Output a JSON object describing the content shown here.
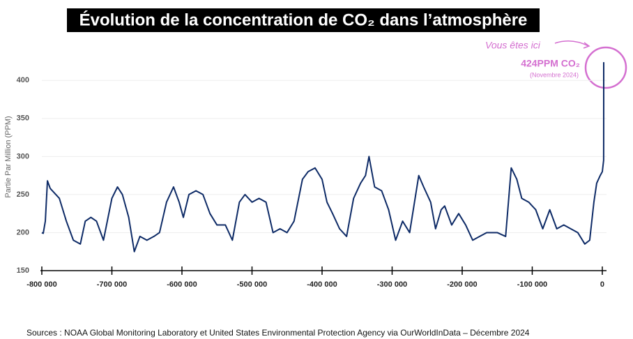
{
  "chart_data": {
    "type": "line",
    "title": "Évolution de la concentration de  CO₂ dans l’atmosphère",
    "y_label": "Partie Par Million (PPM)",
    "source": "Sources : NOAA Global Monitoring Laboratory et United States Environmental Protection Agency via OurWorldInData – Décembre 2024",
    "annotations": [
      "Vous êtes ici",
      "424PPM CO₂",
      "(Novembre 2024)"
    ],
    "color": "#0d2a66",
    "grid": true,
    "xlim": [
      -800000,
      6000
    ],
    "ylim": [
      150,
      425
    ],
    "xticks": [
      {
        "value": -800000,
        "label": "-800 000"
      },
      {
        "value": -700000,
        "label": "-700 000"
      },
      {
        "value": -600000,
        "label": "-600 000"
      },
      {
        "value": -500000,
        "label": "-500 000"
      },
      {
        "value": -400000,
        "label": "-400 000"
      },
      {
        "value": -300000,
        "label": "-300 000"
      },
      {
        "value": -200000,
        "label": "-200 000"
      },
      {
        "value": -100000,
        "label": "-100 000"
      },
      0
    ],
    "yticks": [
      150,
      200,
      250,
      300,
      350,
      400
    ],
    "x": [
      -800000,
      -798000,
      -795000,
      -792000,
      -788000,
      -785000,
      -775000,
      -765000,
      -755000,
      -745000,
      -738000,
      -730000,
      -722000,
      -712000,
      -700000,
      -692000,
      -685000,
      -676000,
      -668000,
      -660000,
      -650000,
      -640000,
      -632000,
      -622000,
      -612000,
      -604000,
      -598000,
      -590000,
      -580000,
      -570000,
      -560000,
      -550000,
      -538000,
      -528000,
      -518000,
      -510000,
      -500000,
      -490000,
      -480000,
      -470000,
      -460000,
      -450000,
      -440000,
      -428000,
      -420000,
      -410000,
      -400000,
      -393000,
      -385000,
      -375000,
      -365000,
      -355000,
      -345000,
      -338000,
      -333000,
      -325000,
      -315000,
      -305000,
      -295000,
      -285000,
      -275000,
      -262000,
      -255000,
      -245000,
      -238000,
      -230000,
      -225000,
      -215000,
      -205000,
      -195000,
      -185000,
      -175000,
      -165000,
      -150000,
      -138000,
      -130000,
      -122000,
      -115000,
      -105000,
      -95000,
      -85000,
      -75000,
      -65000,
      -55000,
      -45000,
      -35000,
      -25000,
      -18000,
      -12000,
      -8000,
      -3000,
      0,
      1900,
      1960,
      2000,
      2024
    ],
    "values": [
      200,
      199,
      215,
      268,
      258,
      255,
      245,
      215,
      190,
      185,
      215,
      220,
      215,
      190,
      245,
      260,
      250,
      220,
      175,
      195,
      190,
      195,
      200,
      240,
      260,
      240,
      220,
      250,
      255,
      250,
      225,
      210,
      210,
      190,
      240,
      250,
      240,
      245,
      240,
      200,
      205,
      200,
      215,
      270,
      280,
      285,
      270,
      240,
      225,
      205,
      195,
      245,
      265,
      275,
      300,
      260,
      255,
      230,
      190,
      215,
      200,
      275,
      260,
      240,
      205,
      230,
      235,
      210,
      225,
      210,
      190,
      195,
      200,
      200,
      195,
      285,
      270,
      245,
      240,
      230,
      205,
      230,
      205,
      210,
      205,
      200,
      185,
      190,
      240,
      265,
      275,
      280,
      295,
      317,
      370,
      424
    ]
  }
}
